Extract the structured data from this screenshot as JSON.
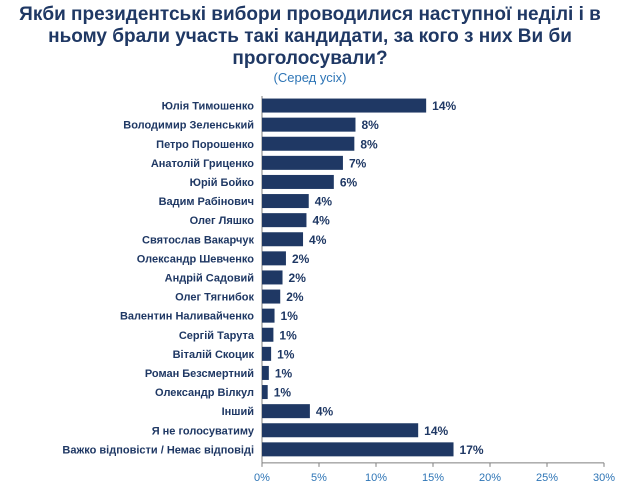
{
  "colors": {
    "title": "#1f3864",
    "subtitle": "#2e75b6",
    "bar": "#1f3864",
    "label": "#1f3864",
    "value": "#1f3864",
    "tick": "#2e75b6",
    "axis": "#7f7f7f"
  },
  "chart_data": {
    "type": "bar",
    "orientation": "horizontal",
    "title_lines": [
      "Якби президентські вибори проводилися наступної неділі і в",
      "ньому брали участь такі кандидати, за кого з них Ви би",
      "проголосували?"
    ],
    "subtitle": "(Серед усіх)",
    "categories": [
      "Юлія Тимошенко",
      "Володимир Зеленський",
      "Петро Порошенко",
      "Анатолій Гриценко",
      "Юрій Бойко",
      "Вадим Рабінович",
      "Олег Ляшко",
      "Святослав Вакарчук",
      "Олександр Шевченко",
      "Андрій Садовий",
      "Олег Тягнибок",
      "Валентин Наливайченко",
      "Сергій Тарута",
      "Віталій Скоцик",
      "Роман Безсмертний",
      "Олександр Вілкул",
      "Інший",
      "Я не голосуватиму",
      "Важко відповісти / Немає відповіді"
    ],
    "values": [
      14.4,
      8.2,
      8.1,
      7.1,
      6.3,
      4.1,
      3.9,
      3.6,
      2.1,
      1.8,
      1.6,
      1.1,
      1.0,
      0.8,
      0.6,
      0.5,
      4.2,
      13.7,
      16.8
    ],
    "value_labels": [
      "14%",
      "8%",
      "8%",
      "7%",
      "6%",
      "4%",
      "4%",
      "4%",
      "2%",
      "2%",
      "2%",
      "1%",
      "1%",
      "1%",
      "1%",
      "1%",
      "4%",
      "14%",
      "17%"
    ],
    "xlim": [
      0,
      30
    ],
    "xticks": [
      0,
      5,
      10,
      15,
      20,
      25,
      30
    ],
    "xtick_labels": [
      "0%",
      "5%",
      "10%",
      "15%",
      "20%",
      "25%",
      "30%"
    ],
    "grid": false,
    "legend": "none"
  }
}
